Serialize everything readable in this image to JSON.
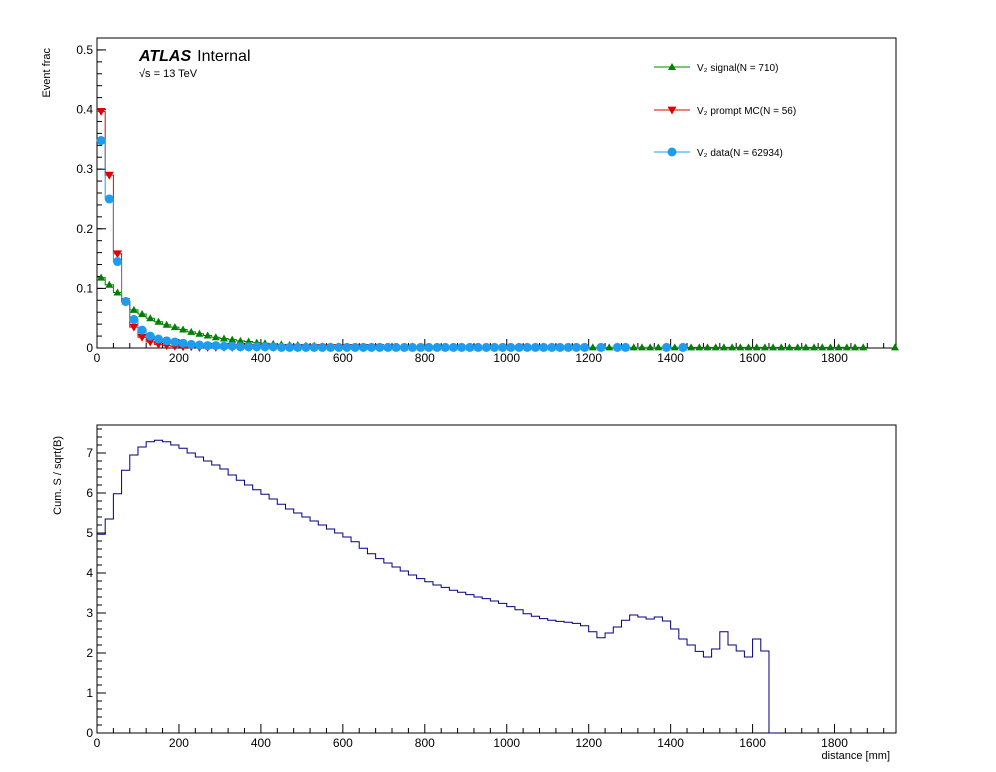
{
  "colors": {
    "signal": "#008000",
    "prompt": "#e00000",
    "data": "#1e9cf0",
    "ratio": "#000080",
    "frame": "#000000"
  },
  "chart_data": [
    {
      "type": "line",
      "title": "",
      "xlabel": "",
      "ylabel": "Event frac",
      "xlim": [
        0,
        1950
      ],
      "ylim": [
        0,
        0.52
      ],
      "x_ticks": [
        0,
        200,
        400,
        600,
        800,
        1000,
        1200,
        1400,
        1600,
        1800
      ],
      "y_ticks": [
        0,
        0.1,
        0.2,
        0.3,
        0.4,
        0.5
      ],
      "x_tick_labels": [
        "0",
        "200",
        "400",
        "600",
        "800",
        "1000",
        "1200",
        "1400",
        "1600",
        "1800"
      ],
      "y_tick_labels": [
        "0",
        "0.1",
        "0.2",
        "0.3",
        "0.4",
        "0.5"
      ],
      "annotation": {
        "experiment": "ATLAS",
        "status": "Internal",
        "energy": "√s = 13 TeV"
      },
      "bin_width": 20,
      "series": [
        {
          "name": "V₂ signal(N = 710)",
          "marker": "triangle-up",
          "x": [
            10,
            30,
            50,
            70,
            90,
            110,
            130,
            150,
            170,
            190,
            210,
            230,
            250,
            270,
            290,
            310,
            330,
            350,
            370,
            390,
            410,
            430,
            450,
            470,
            490,
            510,
            530,
            550,
            570,
            590,
            610,
            630,
            650,
            670,
            690,
            710,
            730,
            750,
            770,
            790,
            810,
            830,
            850,
            870,
            890,
            910,
            930,
            950,
            970,
            990,
            1010,
            1030,
            1050,
            1070,
            1090,
            1110,
            1130,
            1150,
            1170,
            1190,
            1210,
            1230,
            1250,
            1270,
            1290,
            1310,
            1330,
            1350,
            1370,
            1390,
            1410,
            1430,
            1450,
            1470,
            1490,
            1510,
            1530,
            1550,
            1570,
            1590,
            1610,
            1630,
            1650,
            1670,
            1690,
            1710,
            1730,
            1750,
            1770,
            1790,
            1810,
            1830,
            1850,
            1870,
            1950
          ],
          "y": [
            0.118,
            0.106,
            0.093,
            0.078,
            0.064,
            0.057,
            0.05,
            0.044,
            0.039,
            0.035,
            0.031,
            0.027,
            0.024,
            0.021,
            0.018,
            0.016,
            0.014,
            0.012,
            0.011,
            0.009,
            0.008,
            0.007,
            0.006,
            0.005,
            0.005,
            0.004,
            0.004,
            0.003,
            0.003,
            0.003,
            0.002,
            0.002,
            0.002,
            0.002,
            0.002,
            0.001,
            0.001,
            0.001,
            0.001,
            0.001,
            0.001,
            0.001,
            0.001,
            0.001,
            0.001,
            0.001,
            0.001,
            0.001,
            0.001,
            0.001,
            0.001,
            0.001,
            0.001,
            0.001,
            0.001,
            0.001,
            0.001,
            0.001,
            0.001,
            0.001,
            0.001,
            0.001,
            0.001,
            0.001,
            0.001,
            0.001,
            0.001,
            0.001,
            0.001,
            0.001,
            0.001,
            0.001,
            0.001,
            0.001,
            0.001,
            0.001,
            0.001,
            0.001,
            0.001,
            0.001,
            0.001,
            0.001,
            0.001,
            0.001,
            0.001,
            0.001,
            0.001,
            0.001,
            0.001,
            0.001,
            0.001,
            0.001,
            0.001,
            0.001,
            0.001
          ]
        },
        {
          "name": "V₂ prompt MC(N = 56)",
          "marker": "triangle-down",
          "x": [
            10,
            30,
            50,
            70,
            90,
            110,
            130,
            150,
            170,
            190,
            210,
            230,
            250,
            270,
            290,
            310,
            330,
            350,
            370,
            390,
            410,
            430,
            450,
            470,
            490,
            510,
            530,
            550,
            570,
            590,
            610,
            630,
            650,
            670,
            690
          ],
          "y": [
            0.397,
            0.29,
            0.158,
            0.078,
            0.035,
            0.018,
            0.01,
            0.006,
            0.004,
            0.003,
            0.002,
            0.002,
            0.001,
            0.001,
            0.001,
            0.001,
            0.001,
            0.001,
            0.001,
            0.001,
            0.001,
            0.001,
            0.001,
            0.001,
            0.001,
            0.001,
            0.001,
            0.001,
            0.001,
            0.001,
            0.001,
            0.001,
            0.001,
            0.001,
            0.001
          ]
        },
        {
          "name": "V₂ data(N = 62934)",
          "marker": "circle",
          "x": [
            10,
            30,
            50,
            70,
            90,
            110,
            130,
            150,
            170,
            190,
            210,
            230,
            250,
            270,
            290,
            310,
            330,
            350,
            370,
            390,
            410,
            430,
            450,
            470,
            490,
            510,
            530,
            550,
            570,
            590,
            610,
            630,
            650,
            670,
            690,
            710,
            730,
            750,
            770,
            790,
            810,
            830,
            850,
            870,
            890,
            910,
            930,
            950,
            970,
            990,
            1010,
            1030,
            1050,
            1070,
            1090,
            1110,
            1130,
            1150,
            1170,
            1190,
            1230,
            1270,
            1290,
            1390,
            1430
          ],
          "y": [
            0.348,
            0.25,
            0.145,
            0.078,
            0.048,
            0.03,
            0.02,
            0.015,
            0.012,
            0.01,
            0.008,
            0.006,
            0.005,
            0.004,
            0.004,
            0.003,
            0.003,
            0.002,
            0.002,
            0.002,
            0.002,
            0.002,
            0.001,
            0.001,
            0.001,
            0.001,
            0.001,
            0.001,
            0.001,
            0.001,
            0.001,
            0.001,
            0.001,
            0.001,
            0.001,
            0.001,
            0.001,
            0.001,
            0.001,
            0.001,
            0.001,
            0.001,
            0.001,
            0.001,
            0.001,
            0.001,
            0.001,
            0.001,
            0.001,
            0.001,
            0.001,
            0.001,
            0.001,
            0.001,
            0.001,
            0.001,
            0.001,
            0.001,
            0.001,
            0.001,
            0.001,
            0.001,
            0.001,
            0.001,
            0.001
          ]
        }
      ]
    },
    {
      "type": "line",
      "title": "",
      "xlabel": "distance [mm]",
      "ylabel": "Cum. S / sqrt(B)",
      "xlim": [
        0,
        1950
      ],
      "ylim": [
        0,
        7.7
      ],
      "x_ticks": [
        0,
        200,
        400,
        600,
        800,
        1000,
        1200,
        1400,
        1600,
        1800
      ],
      "y_ticks": [
        0,
        1,
        2,
        3,
        4,
        5,
        6,
        7
      ],
      "x_tick_labels": [
        "0",
        "200",
        "400",
        "600",
        "800",
        "1000",
        "1200",
        "1400",
        "1600",
        "1800"
      ],
      "y_tick_labels": [
        "0",
        "1",
        "2",
        "3",
        "4",
        "5",
        "6",
        "7"
      ],
      "bin_width": 20,
      "series": [
        {
          "name": "Cum. S / sqrt(B)",
          "x_edges_start": 0,
          "values": [
            4.97,
            5.35,
            5.98,
            6.57,
            6.95,
            7.15,
            7.28,
            7.32,
            7.28,
            7.2,
            7.12,
            7.0,
            6.9,
            6.8,
            6.7,
            6.6,
            6.45,
            6.32,
            6.2,
            6.08,
            5.97,
            5.85,
            5.72,
            5.6,
            5.5,
            5.4,
            5.3,
            5.2,
            5.1,
            5.0,
            4.9,
            4.78,
            4.62,
            4.48,
            4.36,
            4.25,
            4.15,
            4.05,
            3.95,
            3.86,
            3.78,
            3.7,
            3.64,
            3.57,
            3.52,
            3.46,
            3.4,
            3.36,
            3.3,
            3.24,
            3.16,
            3.08,
            2.98,
            2.92,
            2.86,
            2.82,
            2.79,
            2.77,
            2.74,
            2.68,
            2.53,
            2.38,
            2.5,
            2.65,
            2.82,
            2.95,
            2.9,
            2.85,
            2.9,
            2.8,
            2.6,
            2.35,
            2.2,
            2.04,
            1.9,
            2.1,
            2.53,
            2.2,
            2.05,
            1.9,
            2.35,
            2.05,
            0.0
          ]
        }
      ]
    }
  ]
}
